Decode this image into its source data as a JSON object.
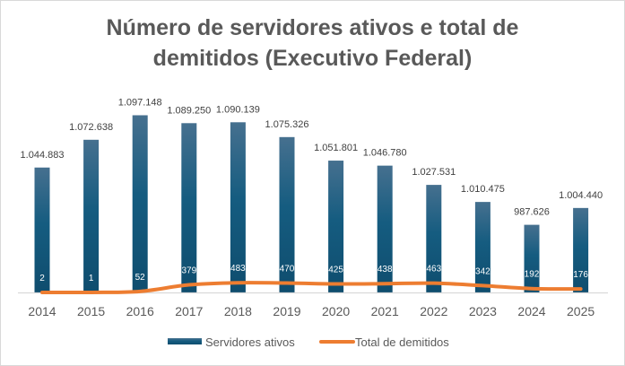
{
  "chart_data": {
    "type": "bar",
    "title": "Número de servidores ativos e total de demitidos (Executivo Federal)",
    "categories": [
      "2014",
      "2015",
      "2016",
      "2017",
      "2018",
      "2019",
      "2020",
      "2021",
      "2022",
      "2023",
      "2024",
      "2025"
    ],
    "series": [
      {
        "name": "Servidores ativos",
        "type": "bar",
        "axis": "primary",
        "color": "#1f5f85",
        "values": [
          1044883,
          1072638,
          1097148,
          1089250,
          1090139,
          1075326,
          1051801,
          1046780,
          1027531,
          1010475,
          987626,
          1004440
        ],
        "labels": [
          "1.044.883",
          "1.072.638",
          "1.097.148",
          "1.089.250",
          "1.090.139",
          "1.075.326",
          "1.051.801",
          "1.046.780",
          "1.027.531",
          "1.010.475",
          "987.626",
          "1.004.440"
        ]
      },
      {
        "name": "Total de demitidos",
        "type": "line",
        "axis": "secondary",
        "color": "#ed7d31",
        "values": [
          2,
          1,
          52,
          379,
          483,
          470,
          425,
          438,
          463,
          342,
          192,
          176
        ],
        "labels": [
          "2",
          "1",
          "52",
          "379",
          "483",
          "470",
          "425",
          "438",
          "463",
          "342",
          "192",
          "176"
        ]
      }
    ],
    "ylim": [
      920000,
      1120000
    ],
    "y2lim": [
      0,
      10000
    ],
    "grid": false,
    "legend": "bottom"
  }
}
